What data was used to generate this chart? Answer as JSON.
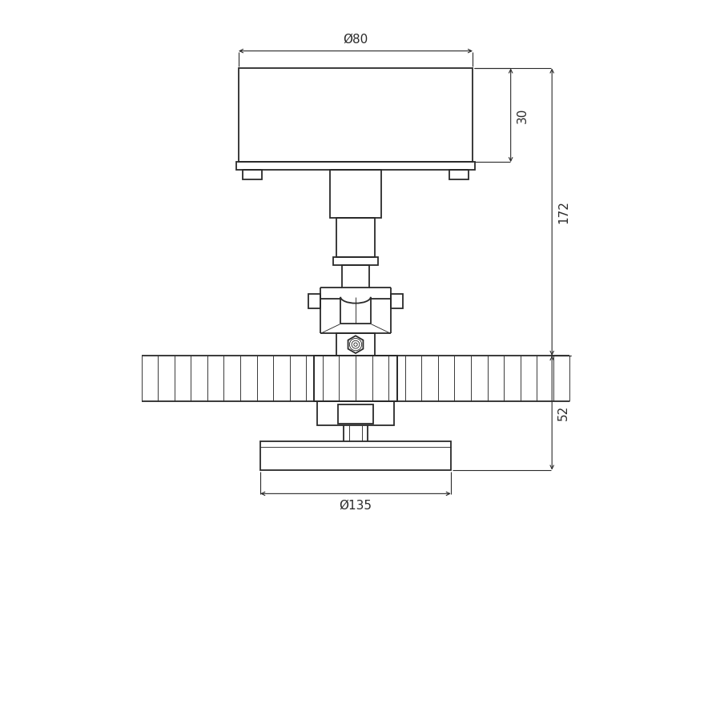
{
  "bg_color": "#ffffff",
  "line_color": "#2a2a2a",
  "dim_color": "#2a2a2a",
  "line_width": 1.3,
  "thin_line": 0.65,
  "dim_line": 0.8,
  "fig_size": [
    8.89,
    8.89
  ],
  "dpi": 100,
  "dim_80_label": "Ø80",
  "dim_30_label": "30",
  "dim_172_label": "172",
  "dim_52_label": "52",
  "dim_135_label": "Ø135"
}
